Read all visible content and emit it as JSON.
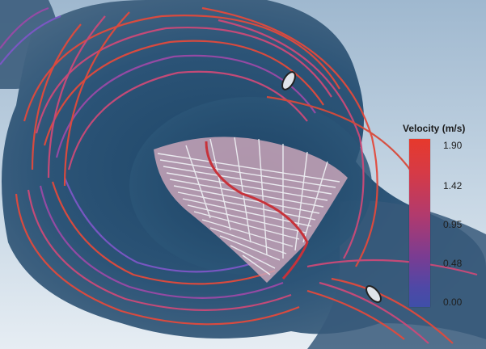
{
  "colorbar": {
    "title": "Velocity (m/s)",
    "ticks": [
      "1.90",
      "1.42",
      "0.95",
      "0.48",
      "0.00"
    ],
    "max": 1.9,
    "min": 0.0,
    "colors": [
      "#e6392c",
      "#b23a6d",
      "#7a3c92",
      "#3f4fa8"
    ]
  },
  "scene": {
    "vessel_color": "#2e5678",
    "streamline_colors": [
      "#e24a3c",
      "#cc4a78",
      "#9a4aa6",
      "#7d57c7"
    ],
    "jet_color": "#f1f4f7"
  }
}
